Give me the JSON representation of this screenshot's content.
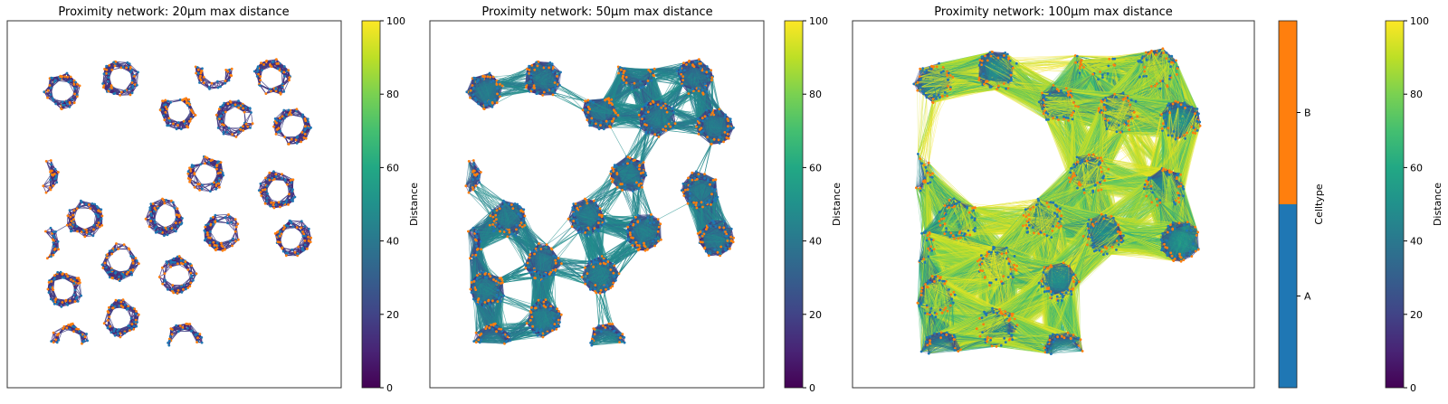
{
  "chart_data": [
    {
      "type": "network",
      "title": "Proximity network: 20µm max distance",
      "max_distance_um": 20,
      "colorbar": {
        "label": "Distance",
        "colormap": "viridis",
        "range": [
          0,
          100
        ],
        "ticks": [
          "0",
          "20",
          "40",
          "60",
          "80",
          "100"
        ]
      },
      "axes_ticks": false
    },
    {
      "type": "network",
      "title": "Proximity network: 50µm max distance",
      "max_distance_um": 50,
      "colorbar": {
        "label": "Distance",
        "colormap": "viridis",
        "range": [
          0,
          100
        ],
        "ticks": [
          "0",
          "20",
          "40",
          "60",
          "80",
          "100"
        ]
      },
      "axes_ticks": false
    },
    {
      "type": "network",
      "title": "Proximity network: 100µm max distance",
      "max_distance_um": 100,
      "colorbar": {
        "label": "Distance",
        "colormap": "viridis",
        "range": [
          0,
          100
        ],
        "ticks": [
          "0",
          "20",
          "40",
          "60",
          "80",
          "100"
        ]
      },
      "celltype_legend": {
        "label": "Celltype",
        "categories": [
          "A",
          "B"
        ],
        "colors": {
          "A": "#1f77b4",
          "B": "#ff7f0e"
        }
      },
      "axes_ticks": false
    }
  ]
}
